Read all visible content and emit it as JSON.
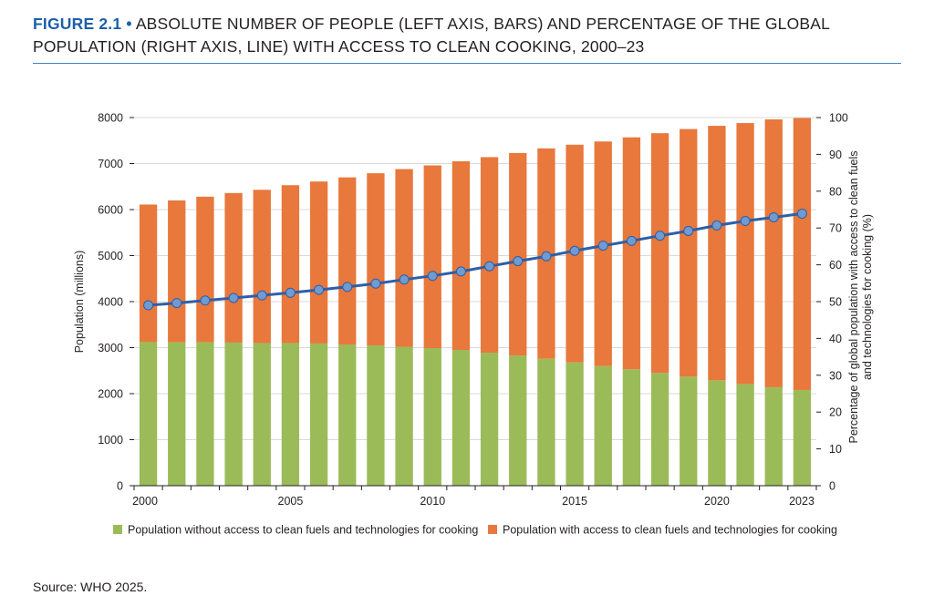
{
  "header": {
    "figure_label": "FIGURE 2.1",
    "separator": "•",
    "title": "ABSOLUTE NUMBER OF PEOPLE (LEFT AXIS, BARS) AND PERCENTAGE OF THE GLOBAL POPULATION (RIGHT AXIS, LINE) WITH ACCESS TO CLEAN COOKING, 2000–23"
  },
  "source": "Source: WHO 2025.",
  "chart_data": {
    "type": "bar",
    "stacked": true,
    "categories": [
      "2000",
      "2001",
      "2002",
      "2003",
      "2004",
      "2005",
      "2006",
      "2007",
      "2008",
      "2009",
      "2010",
      "2011",
      "2012",
      "2013",
      "2014",
      "2015",
      "2016",
      "2017",
      "2018",
      "2019",
      "2020",
      "2021",
      "2022",
      "2023"
    ],
    "x_tick_labels": [
      "2000",
      "2005",
      "2010",
      "2015",
      "2020",
      "2023"
    ],
    "ylabel": "Population (millions)",
    "y2label_lines": [
      "Percentage of global population with access to clean fuels",
      "and technologies for cooking (%)"
    ],
    "ylim": [
      0,
      8000
    ],
    "yticks": [
      0,
      1000,
      2000,
      3000,
      4000,
      5000,
      6000,
      7000,
      8000
    ],
    "y2lim": [
      0,
      100
    ],
    "y2ticks": [
      0,
      10,
      20,
      30,
      40,
      50,
      60,
      70,
      80,
      90,
      100
    ],
    "grid": "horizontal",
    "legend_position": "bottom",
    "series": [
      {
        "name": "Population without access to clean fuels and technologies for cooking",
        "color": "#9bbb59",
        "values": [
          3120,
          3120,
          3120,
          3110,
          3100,
          3100,
          3090,
          3070,
          3050,
          3020,
          2990,
          2950,
          2890,
          2830,
          2760,
          2680,
          2600,
          2530,
          2450,
          2370,
          2290,
          2210,
          2140,
          2080
        ]
      },
      {
        "name": "Population with access to clean fuels and technologies for cooking",
        "color": "#e8783c",
        "values": [
          2990,
          3080,
          3160,
          3250,
          3330,
          3430,
          3520,
          3630,
          3740,
          3860,
          3970,
          4100,
          4250,
          4400,
          4570,
          4730,
          4880,
          5040,
          5210,
          5380,
          5530,
          5670,
          5820,
          5910
        ]
      }
    ],
    "line_series": {
      "name": "Percentage of global population with access to clean cooking",
      "axis": "right",
      "color": "#2e5fa8",
      "marker_color": "#6f9bd1",
      "values": [
        49,
        49.6,
        50.3,
        51,
        51.7,
        52.4,
        53.2,
        54,
        54.9,
        56,
        57,
        58.2,
        59.6,
        61,
        62.3,
        63.8,
        65.2,
        66.5,
        67.9,
        69.2,
        70.7,
        71.9,
        72.9,
        73.9
      ]
    }
  }
}
